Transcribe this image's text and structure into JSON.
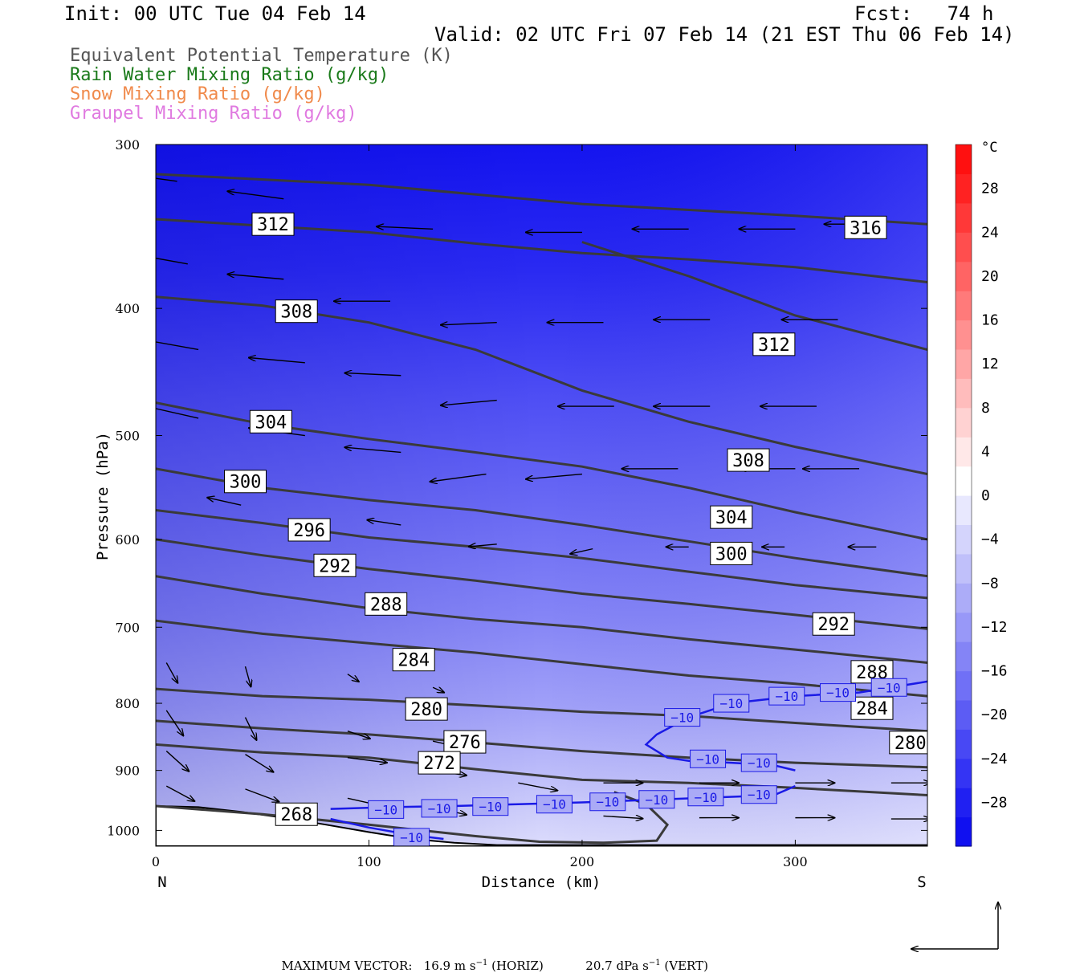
{
  "header": {
    "init": "Init: 00 UTC Tue 04 Feb 14",
    "fcst": "Fcst:   74 h",
    "valid": "Valid: 02 UTC Fri 07 Feb 14 (21 EST Thu 06 Feb 14)"
  },
  "legend": [
    {
      "text": "Equivalent Potential Temperature (K)",
      "color": "#555555"
    },
    {
      "text": "Rain Water Mixing Ratio (g/kg)",
      "color": "#1a7a1a"
    },
    {
      "text": "Snow Mixing Ratio (g/kg)",
      "color": "#f08a4b"
    },
    {
      "text": "Graupel Mixing Ratio (g/kg)",
      "color": "#e07ae0"
    }
  ],
  "chart_data": {
    "type": "heatmap",
    "xlabel": "Distance (km)",
    "ylabel": "Pressure (hPa)",
    "x_ticks": [
      "0",
      "100",
      "200",
      "300"
    ],
    "y_ticks": [
      "300",
      "400",
      "500",
      "600",
      "700",
      "800",
      "900",
      "1000"
    ],
    "xlim": [
      0,
      362
    ],
    "ylim": [
      300,
      1028
    ],
    "y_log": true,
    "left_end_label": "N",
    "right_end_label": "S",
    "colorbar": {
      "unit": "°C",
      "labels": [
        "28",
        "24",
        "20",
        "16",
        "12",
        "8",
        "4",
        "0",
        "−4",
        "−8",
        "−12",
        "−16",
        "−20",
        "−24",
        "−28"
      ],
      "min": -32,
      "max": 32,
      "step": 4,
      "colors": [
        "#1010f0",
        "#2020f2",
        "#3434f4",
        "#4848f4",
        "#5c5cf4",
        "#7070f6",
        "#8484f6",
        "#9898f8",
        "#acacf8",
        "#c0c0fa",
        "#d4d4fc",
        "#e8e8fe",
        "#ffffff",
        "#ffe8e8",
        "#ffd2d2",
        "#ffbcbc",
        "#ffa6a6",
        "#ff9090",
        "#ff7a7a",
        "#ff6464",
        "#ff4e4e",
        "#ff3838",
        "#ff2222",
        "#ff1010"
      ]
    },
    "theta_e_contours": [
      {
        "value": 312,
        "label": "312",
        "x": [
          0,
          50,
          100,
          150,
          200,
          250,
          300,
          362
        ],
        "y": [
          342,
          346,
          350,
          357,
          363,
          367,
          372,
          382
        ]
      },
      {
        "value": 316,
        "label": "316",
        "x": [
          0,
          100,
          200,
          300,
          362
        ],
        "y": [
          316,
          322,
          333,
          340,
          345
        ]
      },
      {
        "value": 308,
        "label": "308",
        "x": [
          0,
          50,
          100,
          150,
          200,
          250,
          300,
          362
        ],
        "y": [
          392,
          398,
          410,
          430,
          462,
          488,
          510,
          535
        ]
      },
      {
        "value": 312,
        "label": "312",
        "x": [
          200,
          250,
          300,
          362
        ],
        "y": [
          356,
          378,
          405,
          430
        ]
      },
      {
        "value": 304,
        "label": "304",
        "x": [
          0,
          50,
          100,
          150,
          200,
          250,
          300,
          362
        ],
        "y": [
          472,
          490,
          503,
          515,
          528,
          548,
          572,
          600
        ]
      },
      {
        "value": 300,
        "label": "300",
        "x": [
          0,
          50,
          100,
          150,
          200,
          250,
          300,
          362
        ],
        "y": [
          530,
          548,
          560,
          570,
          585,
          602,
          620,
          640
        ]
      },
      {
        "value": 296,
        "label": "296",
        "x": [
          0,
          50,
          100,
          150,
          200,
          250,
          300,
          362
        ],
        "y": [
          570,
          583,
          598,
          608,
          620,
          635,
          650,
          665
        ]
      },
      {
        "value": 292,
        "label": "292",
        "x": [
          0,
          50,
          100,
          150,
          200,
          250,
          300,
          362
        ],
        "y": [
          600,
          617,
          632,
          645,
          660,
          672,
          685,
          702
        ]
      },
      {
        "value": 288,
        "label": "288",
        "x": [
          0,
          50,
          100,
          150,
          200,
          250,
          300,
          362
        ],
        "y": [
          640,
          660,
          677,
          690,
          700,
          715,
          728,
          745
        ]
      },
      {
        "value": 284,
        "label": "284",
        "x": [
          0,
          50,
          100,
          150,
          200,
          250,
          300,
          362
        ],
        "y": [
          692,
          708,
          720,
          732,
          747,
          762,
          773,
          790
        ]
      },
      {
        "value": 280,
        "label": "280",
        "x": [
          0,
          50,
          100,
          150,
          200,
          250,
          300,
          362
        ],
        "y": [
          780,
          790,
          795,
          803,
          812,
          818,
          828,
          840
        ]
      },
      {
        "value": 276,
        "label": "276",
        "x": [
          0,
          50,
          100,
          150,
          200,
          250,
          300,
          362
        ],
        "y": [
          825,
          836,
          845,
          857,
          870,
          880,
          888,
          895
        ]
      },
      {
        "value": 272,
        "label": "272",
        "x": [
          0,
          50,
          100,
          150,
          200,
          250,
          300,
          362
        ],
        "y": [
          860,
          872,
          880,
          898,
          915,
          920,
          928,
          940
        ]
      },
      {
        "value": 268,
        "label": "268",
        "x": [
          0,
          50,
          100,
          150,
          180,
          210,
          235,
          240,
          230,
          215
        ],
        "y": [
          958,
          972,
          990,
          1010,
          1020,
          1022,
          1018,
          990,
          955,
          935
        ]
      }
    ],
    "isotherm_minus10": [
      {
        "label": "−10",
        "x": [
          82,
          110,
          140,
          170,
          200,
          230,
          260,
          290,
          300
        ],
        "y": [
          963,
          960,
          958,
          955,
          952,
          948,
          944,
          940,
          925
        ]
      },
      {
        "label": "−10",
        "x": [
          300,
          290,
          270,
          250,
          240,
          230,
          235,
          250,
          270,
          300,
          330,
          362
        ],
        "y": [
          900,
          892,
          888,
          885,
          880,
          860,
          845,
          820,
          800,
          790,
          785,
          770
        ]
      },
      {
        "label": "−10",
        "x": [
          82,
          100,
          120,
          135
        ],
        "y": [
          980,
          995,
          1008,
          1015
        ]
      }
    ],
    "theta_e_label_positions": [
      {
        "text": "312",
        "x": 55,
        "y": 345
      },
      {
        "text": "316",
        "x": 333,
        "y": 347
      },
      {
        "text": "308",
        "x": 66,
        "y": 402
      },
      {
        "text": "312",
        "x": 290,
        "y": 426
      },
      {
        "text": "304",
        "x": 54,
        "y": 488
      },
      {
        "text": "308",
        "x": 278,
        "y": 522
      },
      {
        "text": "300",
        "x": 42,
        "y": 542
      },
      {
        "text": "304",
        "x": 270,
        "y": 577
      },
      {
        "text": "296",
        "x": 72,
        "y": 590
      },
      {
        "text": "300",
        "x": 270,
        "y": 615
      },
      {
        "text": "292",
        "x": 84,
        "y": 628
      },
      {
        "text": "292",
        "x": 318,
        "y": 696
      },
      {
        "text": "288",
        "x": 108,
        "y": 672
      },
      {
        "text": "288",
        "x": 336,
        "y": 757
      },
      {
        "text": "284",
        "x": 121,
        "y": 741
      },
      {
        "text": "284",
        "x": 336,
        "y": 807
      },
      {
        "text": "280",
        "x": 127,
        "y": 808
      },
      {
        "text": "280",
        "x": 354,
        "y": 857
      },
      {
        "text": "276",
        "x": 145,
        "y": 856
      },
      {
        "text": "272",
        "x": 133,
        "y": 888
      },
      {
        "text": "268",
        "x": 66,
        "y": 972
      }
    ],
    "isotherm_label_positions": [
      {
        "text": "−10",
        "x": 108,
        "y": 964
      },
      {
        "text": "−10",
        "x": 133,
        "y": 962
      },
      {
        "text": "−10",
        "x": 157,
        "y": 959
      },
      {
        "text": "−10",
        "x": 187,
        "y": 955
      },
      {
        "text": "−10",
        "x": 212,
        "y": 951
      },
      {
        "text": "−10",
        "x": 235,
        "y": 947
      },
      {
        "text": "−10",
        "x": 258,
        "y": 943
      },
      {
        "text": "−10",
        "x": 283,
        "y": 939
      },
      {
        "text": "−10",
        "x": 120,
        "y": 1012
      },
      {
        "text": "−10",
        "x": 283,
        "y": 888
      },
      {
        "text": "−10",
        "x": 259,
        "y": 882
      },
      {
        "text": "−10",
        "x": 247,
        "y": 820
      },
      {
        "text": "−10",
        "x": 270,
        "y": 800
      },
      {
        "text": "−10",
        "x": 296,
        "y": 790
      },
      {
        "text": "−10",
        "x": 320,
        "y": 785
      },
      {
        "text": "−10",
        "x": 344,
        "y": 778
      }
    ],
    "terrain": {
      "x": [
        0,
        20,
        40,
        60,
        80,
        100,
        120,
        140,
        160,
        180,
        200,
        220,
        240,
        260,
        280,
        300,
        320,
        340,
        362
      ],
      "y": [
        958,
        960,
        968,
        978,
        990,
        1003,
        1015,
        1022,
        1026,
        1026,
        1026,
        1026,
        1026,
        1026,
        1026,
        1026,
        1026,
        1026,
        1026
      ]
    },
    "wind_vectors": [
      {
        "x": 10,
        "p": 320,
        "dx": -1.0,
        "dp": -0.3
      },
      {
        "x": 60,
        "p": 330,
        "dx": -1.0,
        "dp": -0.3
      },
      {
        "x": 130,
        "p": 348,
        "dx": -1.0,
        "dp": -0.1
      },
      {
        "x": 200,
        "p": 350,
        "dx": -1.0,
        "dp": 0
      },
      {
        "x": 250,
        "p": 348,
        "dx": -1.0,
        "dp": 0
      },
      {
        "x": 300,
        "p": 348,
        "dx": -1.0,
        "dp": 0
      },
      {
        "x": 340,
        "p": 345,
        "dx": -1.0,
        "dp": 0
      },
      {
        "x": 15,
        "p": 370,
        "dx": -1.0,
        "dp": -0.4
      },
      {
        "x": 60,
        "p": 380,
        "dx": -1.0,
        "dp": -0.2
      },
      {
        "x": 110,
        "p": 395,
        "dx": -1.0,
        "dp": 0
      },
      {
        "x": 160,
        "p": 410,
        "dx": -1.0,
        "dp": 0.1
      },
      {
        "x": 210,
        "p": 410,
        "dx": -1.0,
        "dp": 0
      },
      {
        "x": 260,
        "p": 408,
        "dx": -1.0,
        "dp": 0
      },
      {
        "x": 320,
        "p": 408,
        "dx": -1.0,
        "dp": 0
      },
      {
        "x": 20,
        "p": 430,
        "dx": -1.0,
        "dp": -0.4
      },
      {
        "x": 70,
        "p": 440,
        "dx": -1.0,
        "dp": -0.2
      },
      {
        "x": 115,
        "p": 450,
        "dx": -1.0,
        "dp": -0.1
      },
      {
        "x": 160,
        "p": 470,
        "dx": -1.0,
        "dp": 0.2
      },
      {
        "x": 215,
        "p": 475,
        "dx": -1.0,
        "dp": 0
      },
      {
        "x": 260,
        "p": 475,
        "dx": -1.0,
        "dp": 0
      },
      {
        "x": 310,
        "p": 475,
        "dx": -1.0,
        "dp": 0
      },
      {
        "x": 20,
        "p": 485,
        "dx": -1.0,
        "dp": -0.5
      },
      {
        "x": 70,
        "p": 500,
        "dx": -1.0,
        "dp": -0.3
      },
      {
        "x": 115,
        "p": 515,
        "dx": -1.0,
        "dp": -0.2
      },
      {
        "x": 155,
        "p": 535,
        "dx": -1.0,
        "dp": 0.3
      },
      {
        "x": 200,
        "p": 535,
        "dx": -1.0,
        "dp": 0.2
      },
      {
        "x": 245,
        "p": 530,
        "dx": -1.0,
        "dp": 0
      },
      {
        "x": 300,
        "p": 530,
        "dx": -1.0,
        "dp": 0
      },
      {
        "x": 330,
        "p": 530,
        "dx": -1.0,
        "dp": 0
      },
      {
        "x": 40,
        "p": 565,
        "dx": -0.6,
        "dp": -0.3
      },
      {
        "x": 115,
        "p": 585,
        "dx": -0.6,
        "dp": -0.2
      },
      {
        "x": 160,
        "p": 605,
        "dx": -0.5,
        "dp": 0.1
      },
      {
        "x": 205,
        "p": 610,
        "dx": -0.4,
        "dp": 0.2
      },
      {
        "x": 250,
        "p": 608,
        "dx": -0.4,
        "dp": 0
      },
      {
        "x": 295,
        "p": 608,
        "dx": -0.4,
        "dp": 0
      },
      {
        "x": 338,
        "p": 608,
        "dx": -0.5,
        "dp": 0
      },
      {
        "x": 42,
        "p": 750,
        "dx": 0.1,
        "dp": 0.8
      },
      {
        "x": 5,
        "p": 745,
        "dx": 0.2,
        "dp": 0.8
      },
      {
        "x": 90,
        "p": 760,
        "dx": 0.2,
        "dp": 0.3
      },
      {
        "x": 130,
        "p": 778,
        "dx": 0.2,
        "dp": 0.2
      },
      {
        "x": 5,
        "p": 810,
        "dx": 0.3,
        "dp": 1.0
      },
      {
        "x": 42,
        "p": 820,
        "dx": 0.2,
        "dp": 0.9
      },
      {
        "x": 90,
        "p": 840,
        "dx": 0.4,
        "dp": 0.3
      },
      {
        "x": 130,
        "p": 855,
        "dx": 0.4,
        "dp": 0.2
      },
      {
        "x": 5,
        "p": 870,
        "dx": 0.4,
        "dp": 0.8
      },
      {
        "x": 42,
        "p": 875,
        "dx": 0.5,
        "dp": 0.7
      },
      {
        "x": 90,
        "p": 880,
        "dx": 0.7,
        "dp": 0.2
      },
      {
        "x": 130,
        "p": 900,
        "dx": 0.6,
        "dp": 0.2
      },
      {
        "x": 5,
        "p": 925,
        "dx": 0.5,
        "dp": 0.6
      },
      {
        "x": 42,
        "p": 930,
        "dx": 0.6,
        "dp": 0.5
      },
      {
        "x": 90,
        "p": 945,
        "dx": 0.6,
        "dp": 0.3
      },
      {
        "x": 130,
        "p": 960,
        "dx": 0.6,
        "dp": 0.3
      },
      {
        "x": 170,
        "p": 920,
        "dx": 0.7,
        "dp": 0.3
      },
      {
        "x": 210,
        "p": 920,
        "dx": 0.7,
        "dp": 0
      },
      {
        "x": 255,
        "p": 920,
        "dx": 0.7,
        "dp": 0
      },
      {
        "x": 300,
        "p": 920,
        "dx": 0.7,
        "dp": 0
      },
      {
        "x": 345,
        "p": 920,
        "dx": 0.7,
        "dp": 0
      },
      {
        "x": 210,
        "p": 975,
        "dx": 0.7,
        "dp": 0.1
      },
      {
        "x": 255,
        "p": 978,
        "dx": 0.7,
        "dp": 0
      },
      {
        "x": 300,
        "p": 978,
        "dx": 0.7,
        "dp": 0
      },
      {
        "x": 345,
        "p": 980,
        "dx": 0.7,
        "dp": 0
      }
    ],
    "footer_vector_note": {
      "prefix": "MAXIMUM VECTOR:",
      "horiz_value": "16.9 m s",
      "horiz_unit_exp": "−1",
      "horiz_suffix": "(HORIZ)",
      "vert_value": "20.7 dPa s",
      "vert_unit_exp": "−1",
      "vert_suffix": "(VERT)"
    }
  }
}
